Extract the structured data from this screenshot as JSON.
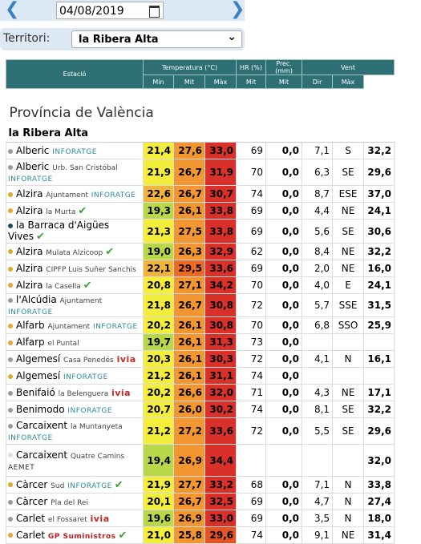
{
  "date": "04/08/2019",
  "territory_label": "Territori:",
  "territory": "la Ribera Alta",
  "table": {
    "header": [
      "Estació",
      "Temperatura (°C)",
      "HR (%)",
      "Prec. (mm)",
      "Vent"
    ],
    "subheader": [
      "Mín",
      "Mit",
      "Màx",
      "Mit",
      "Mit",
      "Dir",
      "Màx"
    ],
    "province": "Província de València",
    "region": "la Ribera Alta",
    "rows": [
      {
        "station": "Alberic",
        "tag": "INFORATGE",
        "values": [
          "21,4",
          "27,6",
          "33,0",
          "69",
          "0,0",
          "7,1",
          "S",
          "32,2"
        ]
      },
      {
        "station": "Alberic",
        "detail": "Urb. San Cristóbal",
        "tag": "INFORATGE",
        "values": [
          "21,9",
          "26,7",
          "31,9",
          "70",
          "0,0",
          "6,3",
          "SE",
          "29,6"
        ]
      },
      {
        "station": "Alzira",
        "detail": "Ajuntament",
        "tag": "INFORATGE",
        "values": [
          "22,6",
          "26,7",
          "30,7",
          "74",
          "0,0",
          "8,7",
          "ESE",
          "37,0"
        ]
      },
      {
        "station": "Alzira",
        "detail": "la Murta",
        "values": [
          "19,3",
          "26,1",
          "33,8",
          "69",
          "0,0",
          "4,4",
          "NE",
          "24,1"
        ]
      },
      {
        "station": "la Barraca d'Aigües Vives",
        "values": [
          "21,3",
          "27,5",
          "33,8",
          "69",
          "0,0",
          "5,6",
          "SE",
          "30,6"
        ]
      },
      {
        "station": "Alzira",
        "detail": "Mulata Alzicoop",
        "values": [
          "19,0",
          "26,3",
          "32,9",
          "62",
          "0,0",
          "8,4",
          "NE",
          "32,2"
        ]
      },
      {
        "station": "Alzira",
        "detail": "CIPFP Luis Suñer Sanchis",
        "values": [
          "22,1",
          "29,5",
          "33,6",
          "69",
          "0,0",
          "2,0",
          "NE",
          "16,0"
        ]
      },
      {
        "station": "Alzira",
        "detail": "la Casella",
        "values": [
          "20,8",
          "27,1",
          "34,2",
          "70",
          "0,0",
          "4,0",
          "E",
          "24,1"
        ]
      },
      {
        "station": "l'Alcúdia",
        "detail": "Ajuntament",
        "tag": "INFORATGE",
        "values": [
          "21,8",
          "26,7",
          "30,8",
          "72",
          "0,0",
          "5,7",
          "SSE",
          "31,5"
        ]
      },
      {
        "station": "Alfarb",
        "detail": "Ajuntament",
        "tag": "INFORATGE",
        "values": [
          "20,2",
          "26,1",
          "30,8",
          "70",
          "0,0",
          "6,8",
          "SSO",
          "25,9"
        ]
      },
      {
        "station": "Alfarp",
        "detail": "el Puntal",
        "values": [
          "19,7",
          "26,1",
          "31,3",
          "73",
          "0,0",
          null,
          null,
          null
        ]
      },
      {
        "station": "Algemesí",
        "detail": "Casa Penedés",
        "tag": "ivia",
        "values": [
          "20,3",
          "26,1",
          "30,3",
          "72",
          "0,0",
          "4,1",
          "N",
          "16,1"
        ]
      },
      {
        "station": "Algemesí",
        "tag": "INFORATGE",
        "values": [
          "21,2",
          "26,1",
          "31,1",
          "74",
          "0,0",
          null,
          null,
          null
        ]
      },
      {
        "station": "Benifaió",
        "detail": "la Belenguera",
        "tag": "ivia",
        "values": [
          "20,2",
          "26,6",
          "32,0",
          "71",
          "0,0",
          "4,3",
          "NE",
          "17,1"
        ]
      },
      {
        "station": "Benimodo",
        "tag": "INFORATGE",
        "values": [
          "20,7",
          "26,0",
          "30,2",
          "74",
          "0,0",
          "8,1",
          "SE",
          "32,2"
        ]
      },
      {
        "station": "Carcaixent",
        "detail": "la Muntanyeta",
        "tag": "INFORATGE",
        "values": [
          "21,2",
          "27,2",
          "33,6",
          "72",
          "0,0",
          "5,5",
          "SE",
          "29,6"
        ]
      },
      {
        "station": "Carcaixent",
        "detail": "Quatre Camins",
        "tag": "AEMET",
        "values": [
          "19,4",
          "26,9",
          "34,4",
          null,
          null,
          null,
          null,
          "32,0"
        ]
      },
      {
        "station": "Càrcer",
        "detail": "Sud",
        "tag": "INFORATGE",
        "values": [
          "21,9",
          "27,7",
          "33,2",
          "68",
          "0,0",
          "7,1",
          "N",
          "33,8"
        ]
      },
      {
        "station": "Càrcer",
        "detail": "Pla del Rei",
        "values": [
          "20,1",
          "26,7",
          "32,5",
          "69",
          "0,0",
          "4,7",
          "N",
          "27,4"
        ]
      },
      {
        "station": "Carlet",
        "detail": "el Fossaret",
        "tag": "ivia",
        "values": [
          "19,6",
          "26,9",
          "33,0",
          "69",
          "0,0",
          "3,5",
          "N",
          "18,0"
        ]
      },
      {
        "station": "Carlet",
        "tag": "GP Suministros",
        "values": [
          "21,0",
          "25,8",
          "29,6",
          "74",
          "0,0",
          "9,1",
          "NE",
          "31,4"
        ]
      }
    ]
  }
}
